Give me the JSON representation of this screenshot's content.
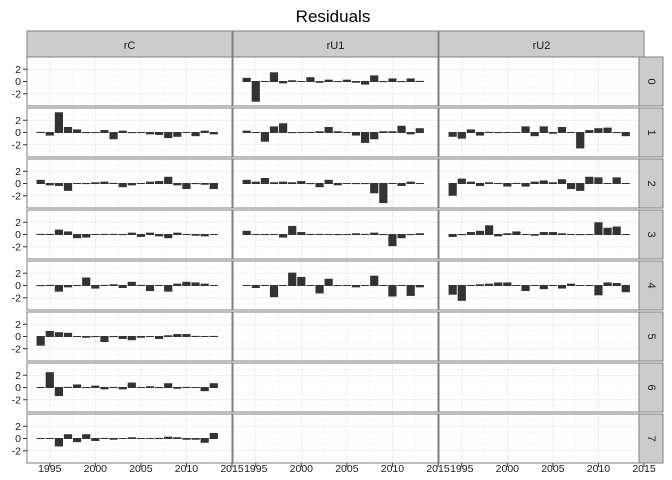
{
  "chart_data": {
    "type": "bar",
    "title": "Residuals",
    "facet_columns": [
      "rC",
      "rU1",
      "rU2"
    ],
    "facet_rows": [
      "0",
      "1",
      "2",
      "3",
      "4",
      "5",
      "6",
      "7"
    ],
    "x": [
      1994,
      1995,
      1996,
      1997,
      1998,
      1999,
      2000,
      2001,
      2002,
      2003,
      2004,
      2005,
      2006,
      2007,
      2008,
      2009,
      2010,
      2011,
      2012,
      2013
    ],
    "xlim": [
      1992.5,
      2015
    ],
    "ylim": [
      -4,
      4
    ],
    "x_ticks": [
      "1995",
      "2000",
      "2005",
      "2010",
      "2015"
    ],
    "y_ticks": [
      "2",
      "0",
      "-2"
    ],
    "grid": true,
    "bar_color": "#333333",
    "strip_color": "#cccccc",
    "panels": {
      "rC": {
        "0": null,
        "1": [
          0.1,
          -0.5,
          3.3,
          0.9,
          0.5,
          -0.1,
          0,
          0.4,
          -1.1,
          0.3,
          -0.1,
          0,
          -0.3,
          -0.4,
          -0.9,
          -0.7,
          0,
          -0.6,
          0.3,
          -0.3
        ],
        "2": [
          0.6,
          -0.3,
          -0.4,
          -1.2,
          0,
          -0.1,
          0.2,
          0.3,
          0.1,
          -0.6,
          -0.3,
          0,
          0.3,
          0.4,
          1.1,
          -0.3,
          -0.9,
          -0.1,
          -0.2,
          -0.9
        ],
        "3": [
          0.1,
          0.1,
          0.8,
          0.5,
          -0.6,
          -0.5,
          0,
          0.1,
          0.1,
          -0.1,
          0.3,
          -0.4,
          0.3,
          -0.3,
          -0.6,
          0.3,
          0,
          -0.2,
          -0.3,
          0
        ],
        "4": [
          -0.1,
          0.1,
          -1.0,
          -0.3,
          0,
          1.3,
          -0.5,
          0.1,
          0.2,
          -0.4,
          0.6,
          0.1,
          -0.9,
          0,
          -1.0,
          0.3,
          0.6,
          0.5,
          0.3,
          0
        ],
        "5": [
          -1.5,
          0.9,
          0.7,
          0.6,
          0,
          -0.2,
          -0.1,
          -0.9,
          -0.1,
          -0.4,
          -0.6,
          -0.2,
          0,
          -0.4,
          0.2,
          0.4,
          0.4,
          0.1,
          0,
          0.1
        ],
        "6": [
          0,
          2.5,
          -1.4,
          0.1,
          0.5,
          -0.1,
          0.3,
          -0.3,
          0.1,
          -0.3,
          0.8,
          0,
          0.2,
          -0.1,
          0.7,
          -0.2,
          0.1,
          0,
          -0.6,
          0.7
        ],
        "7": [
          0,
          0,
          -1.3,
          0.7,
          -0.6,
          0.7,
          -0.4,
          0.1,
          -0.2,
          0,
          0.2,
          0,
          0,
          0.1,
          0.3,
          0.2,
          -0.2,
          -0.2,
          -0.7,
          0.9
        ]
      },
      "rU1": {
        "0": [
          0.6,
          -3.3,
          0,
          1.5,
          -0.3,
          0.2,
          0,
          0.7,
          -0.2,
          0.3,
          0,
          0.3,
          -0.2,
          -0.5,
          1.0,
          -0.1,
          0.5,
          -0.1,
          0.5,
          0.1
        ],
        "1": [
          0.3,
          0,
          -1.5,
          1.0,
          1.5,
          -0.1,
          0,
          0.1,
          0.2,
          0.9,
          0.2,
          0,
          -0.5,
          -1.7,
          -1.1,
          0.2,
          0.2,
          1.1,
          -0.3,
          0.7
        ],
        "2": [
          0.6,
          0.3,
          0.9,
          0.2,
          0.3,
          0.2,
          0.4,
          -0.1,
          -0.6,
          0.6,
          -0.3,
          0,
          -0.1,
          -0.1,
          -1.6,
          -3.2,
          0,
          -0.4,
          0.3,
          0
        ],
        "3": [
          0.6,
          0,
          -0.1,
          0,
          -0.5,
          1.4,
          0.4,
          0.1,
          0.1,
          0,
          -0.1,
          0,
          0.2,
          0.1,
          0.3,
          -0.1,
          -1.9,
          -0.6,
          -0.1,
          0.2
        ],
        "4": [
          0,
          -0.4,
          0,
          -1.9,
          0,
          2.1,
          1.4,
          0,
          -1.3,
          1.1,
          0,
          0,
          -0.3,
          0,
          1.6,
          0,
          -1.8,
          0,
          -1.7,
          -0.3
        ],
        "5": null,
        "6": null,
        "7": null
      },
      "rU2": {
        "0": null,
        "1": [
          -0.7,
          -1.0,
          0.5,
          -0.5,
          0.1,
          -0.1,
          0,
          0,
          1.0,
          -0.6,
          1.0,
          -0.2,
          0.9,
          0,
          -2.6,
          0.4,
          0.7,
          0.8,
          -0.1,
          -0.6
        ],
        "2": [
          -2.0,
          0.8,
          0.3,
          -0.4,
          0.2,
          0,
          -0.5,
          0.1,
          -0.5,
          0.3,
          0.5,
          0.2,
          0.7,
          -0.9,
          -1.2,
          1.1,
          1.0,
          0,
          1.0,
          0
        ],
        "3": [
          -0.4,
          -0.1,
          0.4,
          0.6,
          1.5,
          -0.3,
          0.2,
          0.5,
          0,
          -0.2,
          0.4,
          0.4,
          0.2,
          0,
          -0.1,
          0,
          2.0,
          1.1,
          1.3,
          0
        ],
        "4": [
          -1.5,
          -2.5,
          0,
          0.2,
          0.3,
          0.5,
          0.5,
          0,
          -0.9,
          0,
          -0.6,
          0,
          -0.5,
          0.3,
          0,
          0,
          -1.6,
          0.5,
          0.4,
          -1.1
        ],
        "5": null,
        "6": null,
        "7": null
      }
    }
  }
}
